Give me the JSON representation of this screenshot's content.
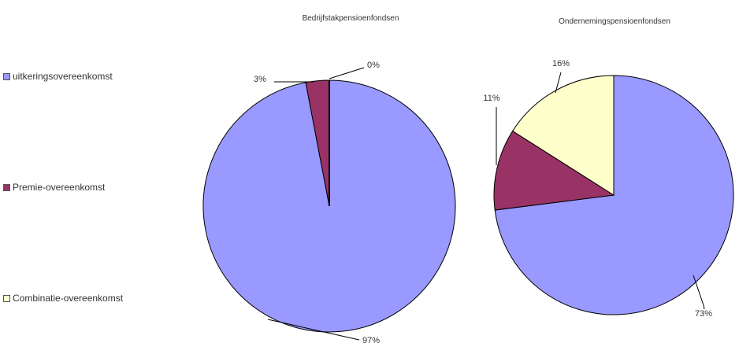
{
  "legend": {
    "items": [
      {
        "label": "uitkeringsovereenkomst",
        "color": "#9999ff"
      },
      {
        "label": "Premie-overeenkomst",
        "color": "#993366"
      },
      {
        "label": "Combinatie-overeenkomst",
        "color": "#ffffcc"
      }
    ]
  },
  "chart_data": [
    {
      "type": "pie",
      "title": "Bedrijfstakpensioenfondsen",
      "legend": "left",
      "slices": [
        {
          "category": "uitkeringsovereenkomst",
          "value": 97,
          "label": "97%"
        },
        {
          "category": "Premie-overeenkomst",
          "value": 3,
          "label": "3%"
        },
        {
          "category": "Combinatie-overeenkomst",
          "value": 0,
          "label": "0%"
        }
      ]
    },
    {
      "type": "pie",
      "title": "Ondernemingspensioenfondsen",
      "legend": "left",
      "slices": [
        {
          "category": "uitkeringsovereenkomst",
          "value": 73,
          "label": "73%"
        },
        {
          "category": "Premie-overeenkomst",
          "value": 11,
          "label": "11%"
        },
        {
          "category": "Combinatie-overeenkomst",
          "value": 16,
          "label": "16%"
        }
      ]
    }
  ]
}
